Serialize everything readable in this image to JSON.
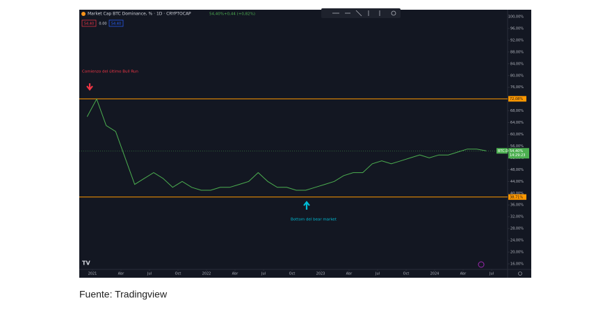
{
  "chart_data": {
    "type": "line",
    "title": "Market Cap BTC Dominance, % · 1D · CRYPTOCAP",
    "legend_price": "54,40%",
    "legend_change": "+0,44 (+0,82%)",
    "price_boxes": [
      "54.40",
      "0.00",
      "54.40"
    ],
    "symbol_tag": "BTC.D",
    "current": {
      "value": 54.4,
      "label": "54,40%"
    },
    "countdown": "14:29:23",
    "series": [
      {
        "name": "BTC.D",
        "color": "#4caf50",
        "x": [
          "2020-12",
          "2021-01",
          "2021-02",
          "2021-03",
          "2021-04",
          "2021-05",
          "2021-06",
          "2021-07",
          "2021-08",
          "2021-09",
          "2021-10",
          "2021-11",
          "2021-12",
          "2022-01",
          "2022-02",
          "2022-03",
          "2022-04",
          "2022-05",
          "2022-06",
          "2022-07",
          "2022-08",
          "2022-09",
          "2022-10",
          "2022-11",
          "2022-12",
          "2023-01",
          "2023-02",
          "2023-03",
          "2023-04",
          "2023-05",
          "2023-06",
          "2023-07",
          "2023-08",
          "2023-09",
          "2023-10",
          "2023-11",
          "2023-12",
          "2024-01",
          "2024-02",
          "2024-03",
          "2024-04",
          "2024-05",
          "2024-06"
        ],
        "values": [
          66,
          72,
          63,
          61,
          52,
          43,
          45,
          47,
          45,
          42,
          44,
          42,
          41,
          41,
          42,
          42,
          43,
          44,
          47,
          44,
          42,
          42,
          41,
          41,
          42,
          43,
          44,
          46,
          47,
          47,
          50,
          51,
          50,
          51,
          52,
          53,
          52,
          53,
          53,
          54,
          55,
          55,
          54.4
        ]
      }
    ],
    "levels": [
      {
        "value": 72.08,
        "label": "72,08%",
        "color": "#ff9800"
      },
      {
        "value": 38.71,
        "label": "38,71%",
        "color": "#ff9800"
      }
    ],
    "annotations": [
      {
        "text": "Comienzo del último Bull Run",
        "color": "#f23645"
      },
      {
        "text": "Bottom del bear market",
        "color": "#00bcd4"
      }
    ],
    "ylim": [
      16,
      100
    ],
    "yticks": [
      {
        "value": 16,
        "label": "16,00%"
      },
      {
        "value": 20,
        "label": "20,00%"
      },
      {
        "value": 24,
        "label": "24,00%"
      },
      {
        "value": 28,
        "label": "28,00%"
      },
      {
        "value": 32,
        "label": "32,00%"
      },
      {
        "value": 36,
        "label": "36,00%"
      },
      {
        "value": 40,
        "label": "40,00%"
      },
      {
        "value": 44,
        "label": "44,00%"
      },
      {
        "value": 48,
        "label": "48,00%"
      },
      {
        "value": 52,
        "label": "52,00%"
      },
      {
        "value": 56,
        "label": "56,00%"
      },
      {
        "value": 60,
        "label": "60,00%"
      },
      {
        "value": 64,
        "label": "64,00%"
      },
      {
        "value": 68,
        "label": "68,00%"
      },
      {
        "value": 72,
        "label": "72,00%"
      },
      {
        "value": 76,
        "label": "76,00%"
      },
      {
        "value": 80,
        "label": "80,00%"
      },
      {
        "value": 84,
        "label": "84,00%"
      },
      {
        "value": 88,
        "label": "88,00%"
      },
      {
        "value": 92,
        "label": "92,00%"
      },
      {
        "value": 96,
        "label": "96,00%"
      },
      {
        "value": 100,
        "label": "100,00%"
      }
    ],
    "xticks": [
      {
        "value": "2021-01",
        "label": "2021"
      },
      {
        "value": "2021-04",
        "label": "Abr"
      },
      {
        "value": "2021-07",
        "label": "Jul"
      },
      {
        "value": "2021-10",
        "label": "Oct"
      },
      {
        "value": "2022-01",
        "label": "2022"
      },
      {
        "value": "2022-04",
        "label": "Abr"
      },
      {
        "value": "2022-07",
        "label": "Jul"
      },
      {
        "value": "2022-10",
        "label": "Oct"
      },
      {
        "value": "2023-01",
        "label": "2023"
      },
      {
        "value": "2023-04",
        "label": "Abr"
      },
      {
        "value": "2023-07",
        "label": "Jul"
      },
      {
        "value": "2023-10",
        "label": "Oct"
      },
      {
        "value": "2024-01",
        "label": "2024"
      },
      {
        "value": "2024-04",
        "label": "Abr"
      },
      {
        "value": "2024-07",
        "label": "Jul"
      }
    ],
    "caption": "Fuente: Tradingview"
  }
}
